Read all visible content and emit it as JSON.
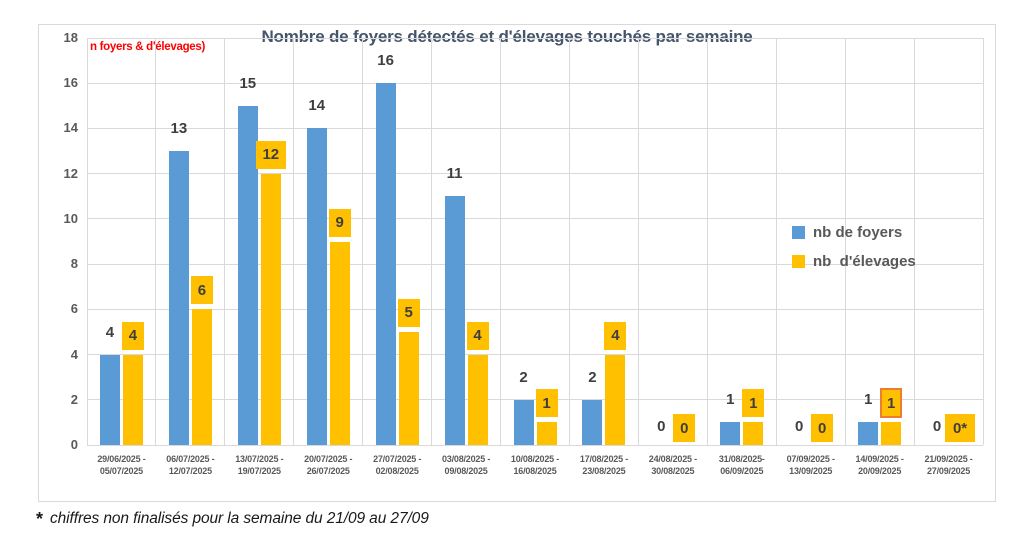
{
  "annotation": "n foyers & d'élevages)",
  "footnote": {
    "asterisk": "*",
    "text": "chiffres non finalisés pour la semaine du 21/09 au 27/09"
  },
  "colors": {
    "foyers": "#5B9BD5",
    "elevages": "#FFC000",
    "title_text": "#44546A",
    "annotation_text": "#FF0000",
    "gridline": "#D9D9D9",
    "frame_border": "#D9D9D9",
    "axis_text": "#595959",
    "value_text": "#3F3F3F",
    "highlight_border": "#ED7D31"
  },
  "chart_data": {
    "type": "bar",
    "title": "Nombre de foyers détectés et d'élevages touchés par semaine",
    "xlabel": "",
    "ylabel": "",
    "ylim": [
      0,
      18
    ],
    "ytick_step": 2,
    "grid": true,
    "legend_position": "middle-right",
    "categories": [
      [
        "29/06/2025 -",
        "05/07/2025"
      ],
      [
        "06/07/2025 -",
        "12/07/2025"
      ],
      [
        "13/07/2025 -",
        "19/07/2025"
      ],
      [
        "20/07/2025 -",
        "26/07/2025"
      ],
      [
        "27/07/2025 -",
        "02/08/2025"
      ],
      [
        "03/08/2025 -",
        "09/08/2025"
      ],
      [
        "10/08/2025 -",
        "16/08/2025"
      ],
      [
        "17/08/2025 -",
        "23/08/2025"
      ],
      [
        "24/08/2025 -",
        "30/08/2025"
      ],
      [
        "31/08/2025-",
        "06/09/2025"
      ],
      [
        "07/09/2025 -",
        "13/09/2025"
      ],
      [
        "14/09/2025 -",
        "20/09/2025"
      ],
      [
        "21/09/2025 -",
        "27/09/2025"
      ]
    ],
    "series": [
      {
        "name": "nb de foyers",
        "color": "#5B9BD5",
        "values": [
          4,
          13,
          15,
          14,
          16,
          11,
          2,
          2,
          0,
          1,
          0,
          1,
          0
        ],
        "labels": [
          "4",
          "13",
          "15",
          "14",
          "16",
          "11",
          "2",
          "2",
          "0",
          "1",
          "0",
          "1",
          "0"
        ]
      },
      {
        "name": "nb  d'élevages",
        "color": "#FFC000",
        "values": [
          4,
          6,
          12,
          9,
          5,
          4,
          1,
          4,
          0,
          1,
          0,
          1,
          0
        ],
        "labels": [
          "4",
          "6",
          "12",
          "9",
          "5",
          "4",
          "1",
          "4",
          "0",
          "1",
          "0",
          "1",
          "0*"
        ],
        "highlighted_label_index": 11
      }
    ]
  }
}
